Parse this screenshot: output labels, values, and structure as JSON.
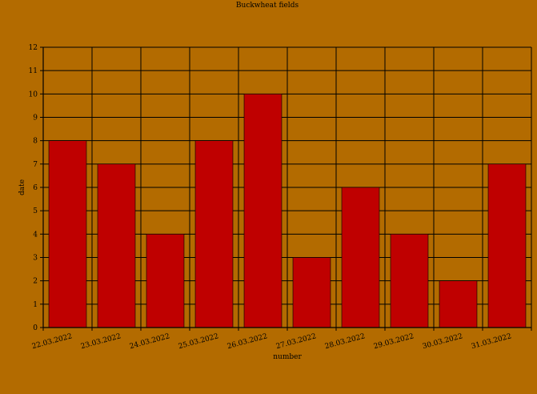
{
  "chart_data": {
    "type": "bar",
    "title": "Buckwheat fields",
    "xlabel": "number",
    "ylabel": "date",
    "categories": [
      "22.03.2022",
      "23.03.2022",
      "24.03.2022",
      "25.03.2022",
      "26.03.2022",
      "27.03.2022",
      "28.03.2022",
      "29.03.2022",
      "30.03.2022",
      "31.03.2022"
    ],
    "values": [
      8,
      7,
      4,
      8,
      10,
      3,
      6,
      4,
      2,
      7
    ],
    "ylim": [
      0,
      12
    ],
    "yticks": [
      "0",
      "1",
      "2",
      "3",
      "4",
      "5",
      "6",
      "7",
      "8",
      "9",
      "10",
      "11",
      "12"
    ],
    "grid": true,
    "legend": "none",
    "colors": {
      "background": "#b36b00",
      "bar": "#bf0000",
      "grid": "#000000"
    }
  }
}
